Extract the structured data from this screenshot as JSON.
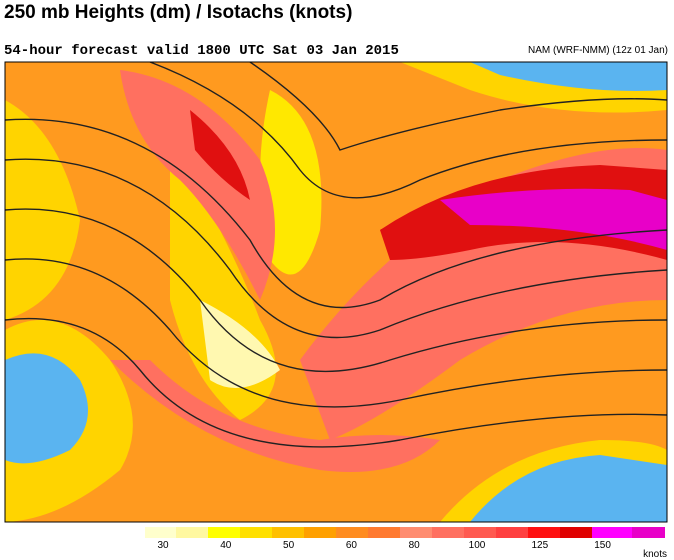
{
  "header": {
    "title": "250 mb Heights (dm) / Isotachs (knots)",
    "subtitle": "54-hour forecast valid 1800 UTC Sat 03 Jan 2015",
    "model": "NAM (WRF-NMM) (12z 01 Jan)"
  },
  "legend": {
    "labels": [
      30,
      40,
      50,
      60,
      80,
      100,
      125,
      150
    ],
    "unit": "knots"
  }
}
